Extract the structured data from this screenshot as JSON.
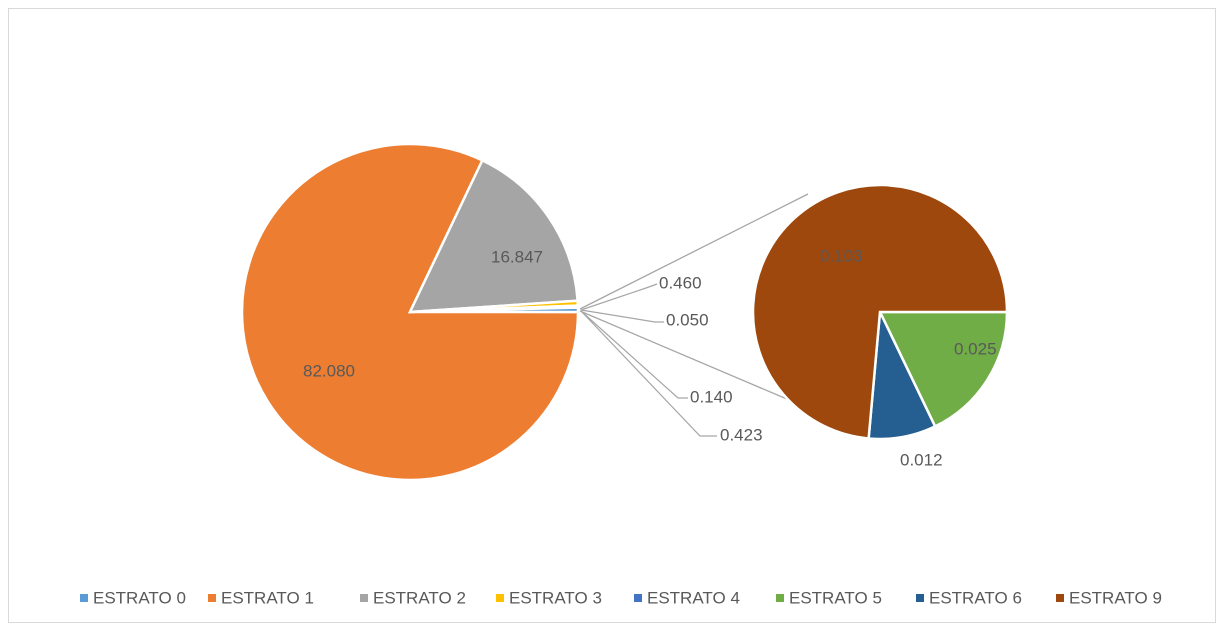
{
  "chart_data": {
    "type": "pie-of-pie",
    "categories": [
      "ESTRATO 0",
      "ESTRATO 1",
      "ESTRATO 2",
      "ESTRATO 3",
      "ESTRATO 4",
      "ESTRATO 5",
      "ESTRATO 6",
      "ESTRATO 9"
    ],
    "values": [
      0.423,
      82.08,
      16.847,
      0.46,
      0.05,
      0.025,
      0.012,
      0.103
    ],
    "value_labels": [
      "0.423",
      "82.080",
      "16.847",
      "0.460",
      "0.050",
      "0.025",
      "0.012",
      "0.103"
    ],
    "colors": [
      "#5b9bd5",
      "#ed7d31",
      "#a5a5a5",
      "#ffc000",
      "#4472c4",
      "#70ad47",
      "#255e91",
      "#9e480e"
    ],
    "other_value": 0.14,
    "other_label": "0.140",
    "legend": "bottom"
  }
}
